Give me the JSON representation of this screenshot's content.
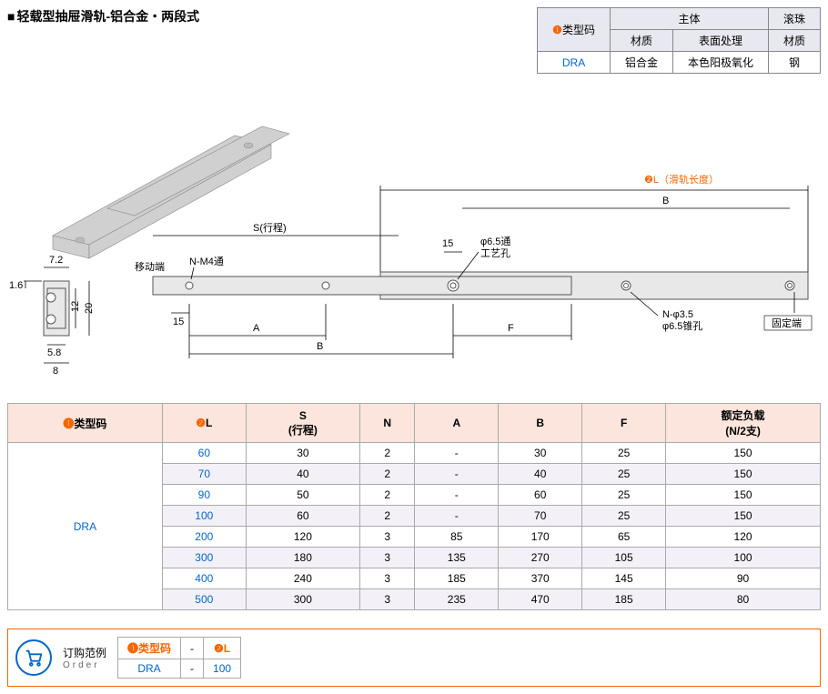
{
  "title": "轻载型抽屉滑轨-铝合金・两段式",
  "spec_header": {
    "type_code": "类型码",
    "type_code_num": "❶",
    "body": "主体",
    "ball": "滚珠",
    "material": "材质",
    "surface": "表面处理",
    "ball_mat": "材质"
  },
  "spec_row": {
    "code": "DRA",
    "mat": "铝合金",
    "surf": "本色阳极氧化",
    "ball": "钢"
  },
  "diagram_labels": {
    "L_label": "❷L（滑轨长度）",
    "S_label": "S(行程)",
    "moving": "移动端",
    "nm4": "N-M4通",
    "hole65": "φ6.5通\n工艺孔",
    "n35": "N-φ3.5\nφ6.5锥孔",
    "fixed": "固定端",
    "A": "A",
    "B": "B",
    "F": "F",
    "d15a": "15",
    "d15b": "15",
    "d72": "7.2",
    "d16": "1.6",
    "d12": "12",
    "d20": "20",
    "d58": "5.8",
    "d8": "8"
  },
  "data_headers": [
    "❶类型码",
    "❷L",
    "S\n(行程)",
    "N",
    "A",
    "B",
    "F",
    "额定负载\n(N/2支)"
  ],
  "data_type_code": "DRA",
  "data_rows": [
    {
      "L": "60",
      "S": "30",
      "N": "2",
      "A": "-",
      "B": "30",
      "F": "25",
      "load": "150"
    },
    {
      "L": "70",
      "S": "40",
      "N": "2",
      "A": "-",
      "B": "40",
      "F": "25",
      "load": "150"
    },
    {
      "L": "90",
      "S": "50",
      "N": "2",
      "A": "-",
      "B": "60",
      "F": "25",
      "load": "150"
    },
    {
      "L": "100",
      "S": "60",
      "N": "2",
      "A": "-",
      "B": "70",
      "F": "25",
      "load": "150"
    },
    {
      "L": "200",
      "S": "120",
      "N": "3",
      "A": "85",
      "B": "170",
      "F": "65",
      "load": "120"
    },
    {
      "L": "300",
      "S": "180",
      "N": "3",
      "A": "135",
      "B": "270",
      "F": "105",
      "load": "100"
    },
    {
      "L": "400",
      "S": "240",
      "N": "3",
      "A": "185",
      "B": "370",
      "F": "145",
      "load": "90"
    },
    {
      "L": "500",
      "S": "300",
      "N": "3",
      "A": "235",
      "B": "470",
      "F": "185",
      "load": "80"
    }
  ],
  "order": {
    "label_cn": "订购范例",
    "label_en": "Order",
    "h1": "❶类型码",
    "h2": "❷L",
    "v1": "DRA",
    "v2": "100",
    "dash": "-"
  },
  "colors": {
    "orange": "#f56600",
    "blue": "#0066cc",
    "rail": "#e8e8e8",
    "header_bg": "#fbe5dc"
  }
}
